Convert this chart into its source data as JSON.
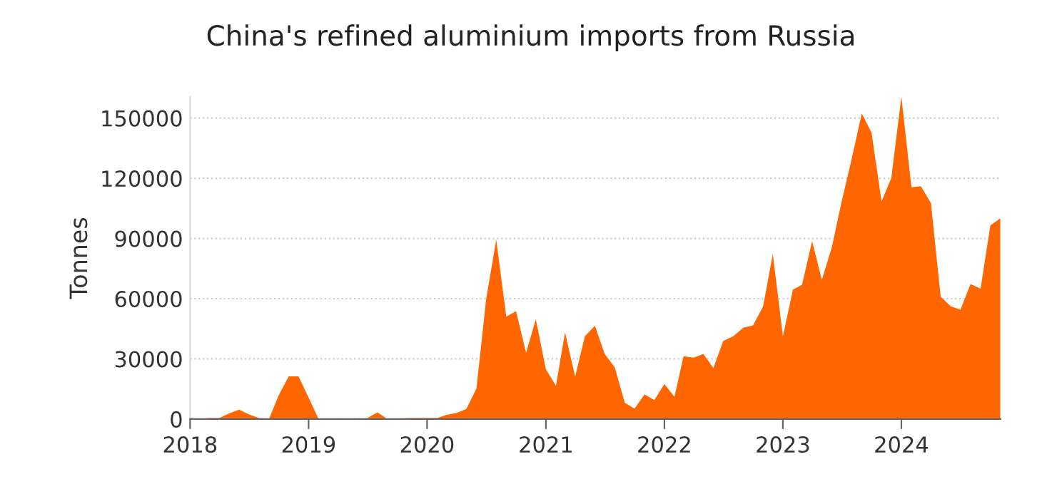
{
  "chart_data": {
    "type": "area",
    "title": "China's refined aluminium imports from Russia",
    "ylabel": "Tonnes",
    "x": [
      "2018-01",
      "2018-02",
      "2018-03",
      "2018-04",
      "2018-05",
      "2018-06",
      "2018-07",
      "2018-08",
      "2018-09",
      "2018-10",
      "2018-11",
      "2018-12",
      "2019-01",
      "2019-02",
      "2019-03",
      "2019-04",
      "2019-05",
      "2019-06",
      "2019-07",
      "2019-08",
      "2019-09",
      "2019-10",
      "2019-11",
      "2019-12",
      "2020-01",
      "2020-02",
      "2020-03",
      "2020-04",
      "2020-05",
      "2020-06",
      "2020-07",
      "2020-08",
      "2020-09",
      "2020-10",
      "2020-11",
      "2020-12",
      "2021-01",
      "2021-02",
      "2021-03",
      "2021-04",
      "2021-05",
      "2021-06",
      "2021-07",
      "2021-08",
      "2021-09",
      "2021-10",
      "2021-11",
      "2021-12",
      "2022-01",
      "2022-02",
      "2022-03",
      "2022-04",
      "2022-05",
      "2022-06",
      "2022-07",
      "2022-08",
      "2022-09",
      "2022-10",
      "2022-11",
      "2022-12",
      "2023-01",
      "2023-02",
      "2023-03",
      "2023-04",
      "2023-05",
      "2023-06",
      "2023-07",
      "2023-08",
      "2023-09",
      "2023-10",
      "2023-11",
      "2023-12",
      "2024-01",
      "2024-02",
      "2024-03",
      "2024-04",
      "2024-05",
      "2024-06",
      "2024-07",
      "2024-08",
      "2024-09",
      "2024-10",
      "2024-11"
    ],
    "series": [
      {
        "color": "#ff6600",
        "values": [
          500,
          0,
          500,
          500,
          2800,
          4700,
          2400,
          500,
          0,
          11900,
          21300,
          21300,
          10700,
          0,
          0,
          0,
          0,
          0,
          500,
          3300,
          0,
          0,
          500,
          500,
          500,
          500,
          2100,
          3100,
          5000,
          15200,
          59800,
          89400,
          51000,
          53800,
          33000,
          49800,
          24700,
          16600,
          43200,
          21100,
          41300,
          46500,
          32500,
          25800,
          8100,
          5200,
          12300,
          9500,
          17500,
          11100,
          31300,
          30600,
          32500,
          25400,
          38900,
          41300,
          45500,
          46700,
          56200,
          82300,
          41300,
          64500,
          66900,
          88700,
          69300,
          85800,
          108400,
          129700,
          152300,
          142800,
          108400,
          120200,
          160600,
          115500,
          116000,
          107700,
          61000,
          56200,
          54500,
          67300,
          65000,
          96500,
          100100
        ]
      }
    ],
    "xlim": [
      "2018-01",
      "2024-11"
    ],
    "xticks": [
      {
        "value": "2018-01",
        "label": "2018"
      },
      {
        "value": "2019-01",
        "label": "2019"
      },
      {
        "value": "2020-01",
        "label": "2020"
      },
      {
        "value": "2021-01",
        "label": "2021"
      },
      {
        "value": "2022-01",
        "label": "2022"
      },
      {
        "value": "2023-01",
        "label": "2023"
      },
      {
        "value": "2024-01",
        "label": "2024"
      }
    ],
    "ylim": [
      0,
      160600
    ],
    "yticks": [
      0,
      30000,
      60000,
      90000,
      120000,
      150000
    ],
    "grid": "y",
    "legend": false
  }
}
